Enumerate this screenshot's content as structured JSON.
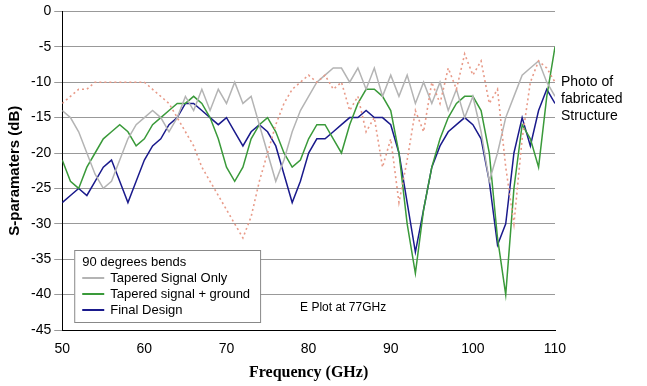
{
  "chart_data": {
    "type": "line",
    "x_label": "Frequency (GHz)",
    "y_label": "S-paramaters (dB)",
    "xlim": [
      50,
      110
    ],
    "xticks": [
      50,
      60,
      70,
      80,
      90,
      100,
      110
    ],
    "ylim": [
      -45,
      0
    ],
    "yticks": [
      0,
      -5,
      -10,
      -15,
      -20,
      -25,
      -30,
      -35,
      -40,
      -45
    ],
    "grid": true,
    "legend": "bottom-left",
    "legend_title": "90 degrees bends",
    "annotations": [
      "Photo of fabricated Structure",
      "E Plot at 77GHz"
    ],
    "x": [
      50,
      51,
      52,
      53,
      54,
      55,
      56,
      57,
      58,
      59,
      60,
      61,
      62,
      63,
      64,
      65,
      66,
      67,
      68,
      69,
      70,
      71,
      72,
      73,
      74,
      75,
      76,
      77,
      78,
      79,
      80,
      81,
      82,
      83,
      84,
      85,
      86,
      87,
      88,
      89,
      90,
      91,
      92,
      93,
      94,
      95,
      96,
      97,
      98,
      99,
      100,
      101,
      102,
      103,
      104,
      105,
      106,
      107,
      108,
      109,
      110
    ],
    "series": [
      {
        "name": null,
        "color": "#e89a88",
        "line_style": "dotted",
        "values": [
          -13,
          -12,
          -11,
          -11,
          -10,
          -10,
          -10,
          -10,
          -10,
          -10,
          -10,
          -11,
          -12,
          -13,
          -15,
          -17,
          -19,
          -22,
          -24,
          -26,
          -28,
          -30,
          -32,
          -29,
          -24,
          -20,
          -16,
          -13,
          -11,
          -10,
          -9,
          -10,
          -9,
          -11,
          -10,
          -14,
          -12,
          -17,
          -15,
          -22,
          -18,
          -27,
          -21,
          -14,
          -17,
          -10,
          -13,
          -8,
          -11,
          -6,
          -9,
          -7,
          -13,
          -11,
          -22,
          -30,
          -18,
          -10,
          -7,
          -8,
          -10
        ]
      },
      {
        "name": "Tapered Signal Only",
        "color": "#b4b4b4",
        "line_style": "solid",
        "values": [
          -14,
          -15,
          -17,
          -20,
          -23,
          -25,
          -24,
          -21,
          -18,
          -16,
          -15,
          -14,
          -15,
          -17,
          -15,
          -12,
          -14,
          -11,
          -14,
          -11,
          -13,
          -10,
          -13,
          -12,
          -16,
          -20,
          -24,
          -21,
          -17,
          -14,
          -12,
          -10,
          -9,
          -8,
          -8,
          -10,
          -8,
          -11,
          -8,
          -12,
          -9,
          -12,
          -9,
          -13,
          -10,
          -13,
          -10,
          -14,
          -11,
          -15,
          -12,
          -17,
          -24,
          -20,
          -15,
          -12,
          -9,
          -8,
          -7,
          -10,
          -12
        ]
      },
      {
        "name": "Tapered signal + ground",
        "color": "#3a9a3a",
        "line_style": "solid",
        "values": [
          -21,
          -24,
          -25,
          -22,
          -20,
          -18,
          -17,
          -16,
          -17,
          -19,
          -18,
          -16,
          -15,
          -14,
          -13,
          -13,
          -12,
          -13,
          -15,
          -18,
          -22,
          -24,
          -22,
          -18,
          -16,
          -15,
          -17,
          -20,
          -22,
          -21,
          -18,
          -16,
          -16,
          -18,
          -20,
          -16,
          -13,
          -11,
          -11,
          -12,
          -14,
          -20,
          -30,
          -37,
          -28,
          -22,
          -18,
          -15,
          -13,
          -12,
          -12,
          -14,
          -20,
          -32,
          -40,
          -25,
          -16,
          -18,
          -22,
          -12,
          -5
        ]
      },
      {
        "name": "Final Design",
        "color": "#1a1a8c",
        "line_style": "solid",
        "values": [
          -27,
          -26,
          -25,
          -26,
          -24,
          -22,
          -21,
          -24,
          -27,
          -24,
          -21,
          -19,
          -18,
          -16,
          -15,
          -13,
          -13,
          -14,
          -15,
          -16,
          -15,
          -17,
          -19,
          -17,
          -16,
          -17,
          -19,
          -23,
          -27,
          -24,
          -20,
          -18,
          -18,
          -17,
          -16,
          -15,
          -15,
          -14,
          -15,
          -15,
          -16,
          -20,
          -27,
          -34,
          -28,
          -22,
          -19,
          -17,
          -16,
          -15,
          -16,
          -18,
          -24,
          -33,
          -30,
          -20,
          -15,
          -19,
          -14,
          -11,
          -13
        ]
      }
    ]
  }
}
